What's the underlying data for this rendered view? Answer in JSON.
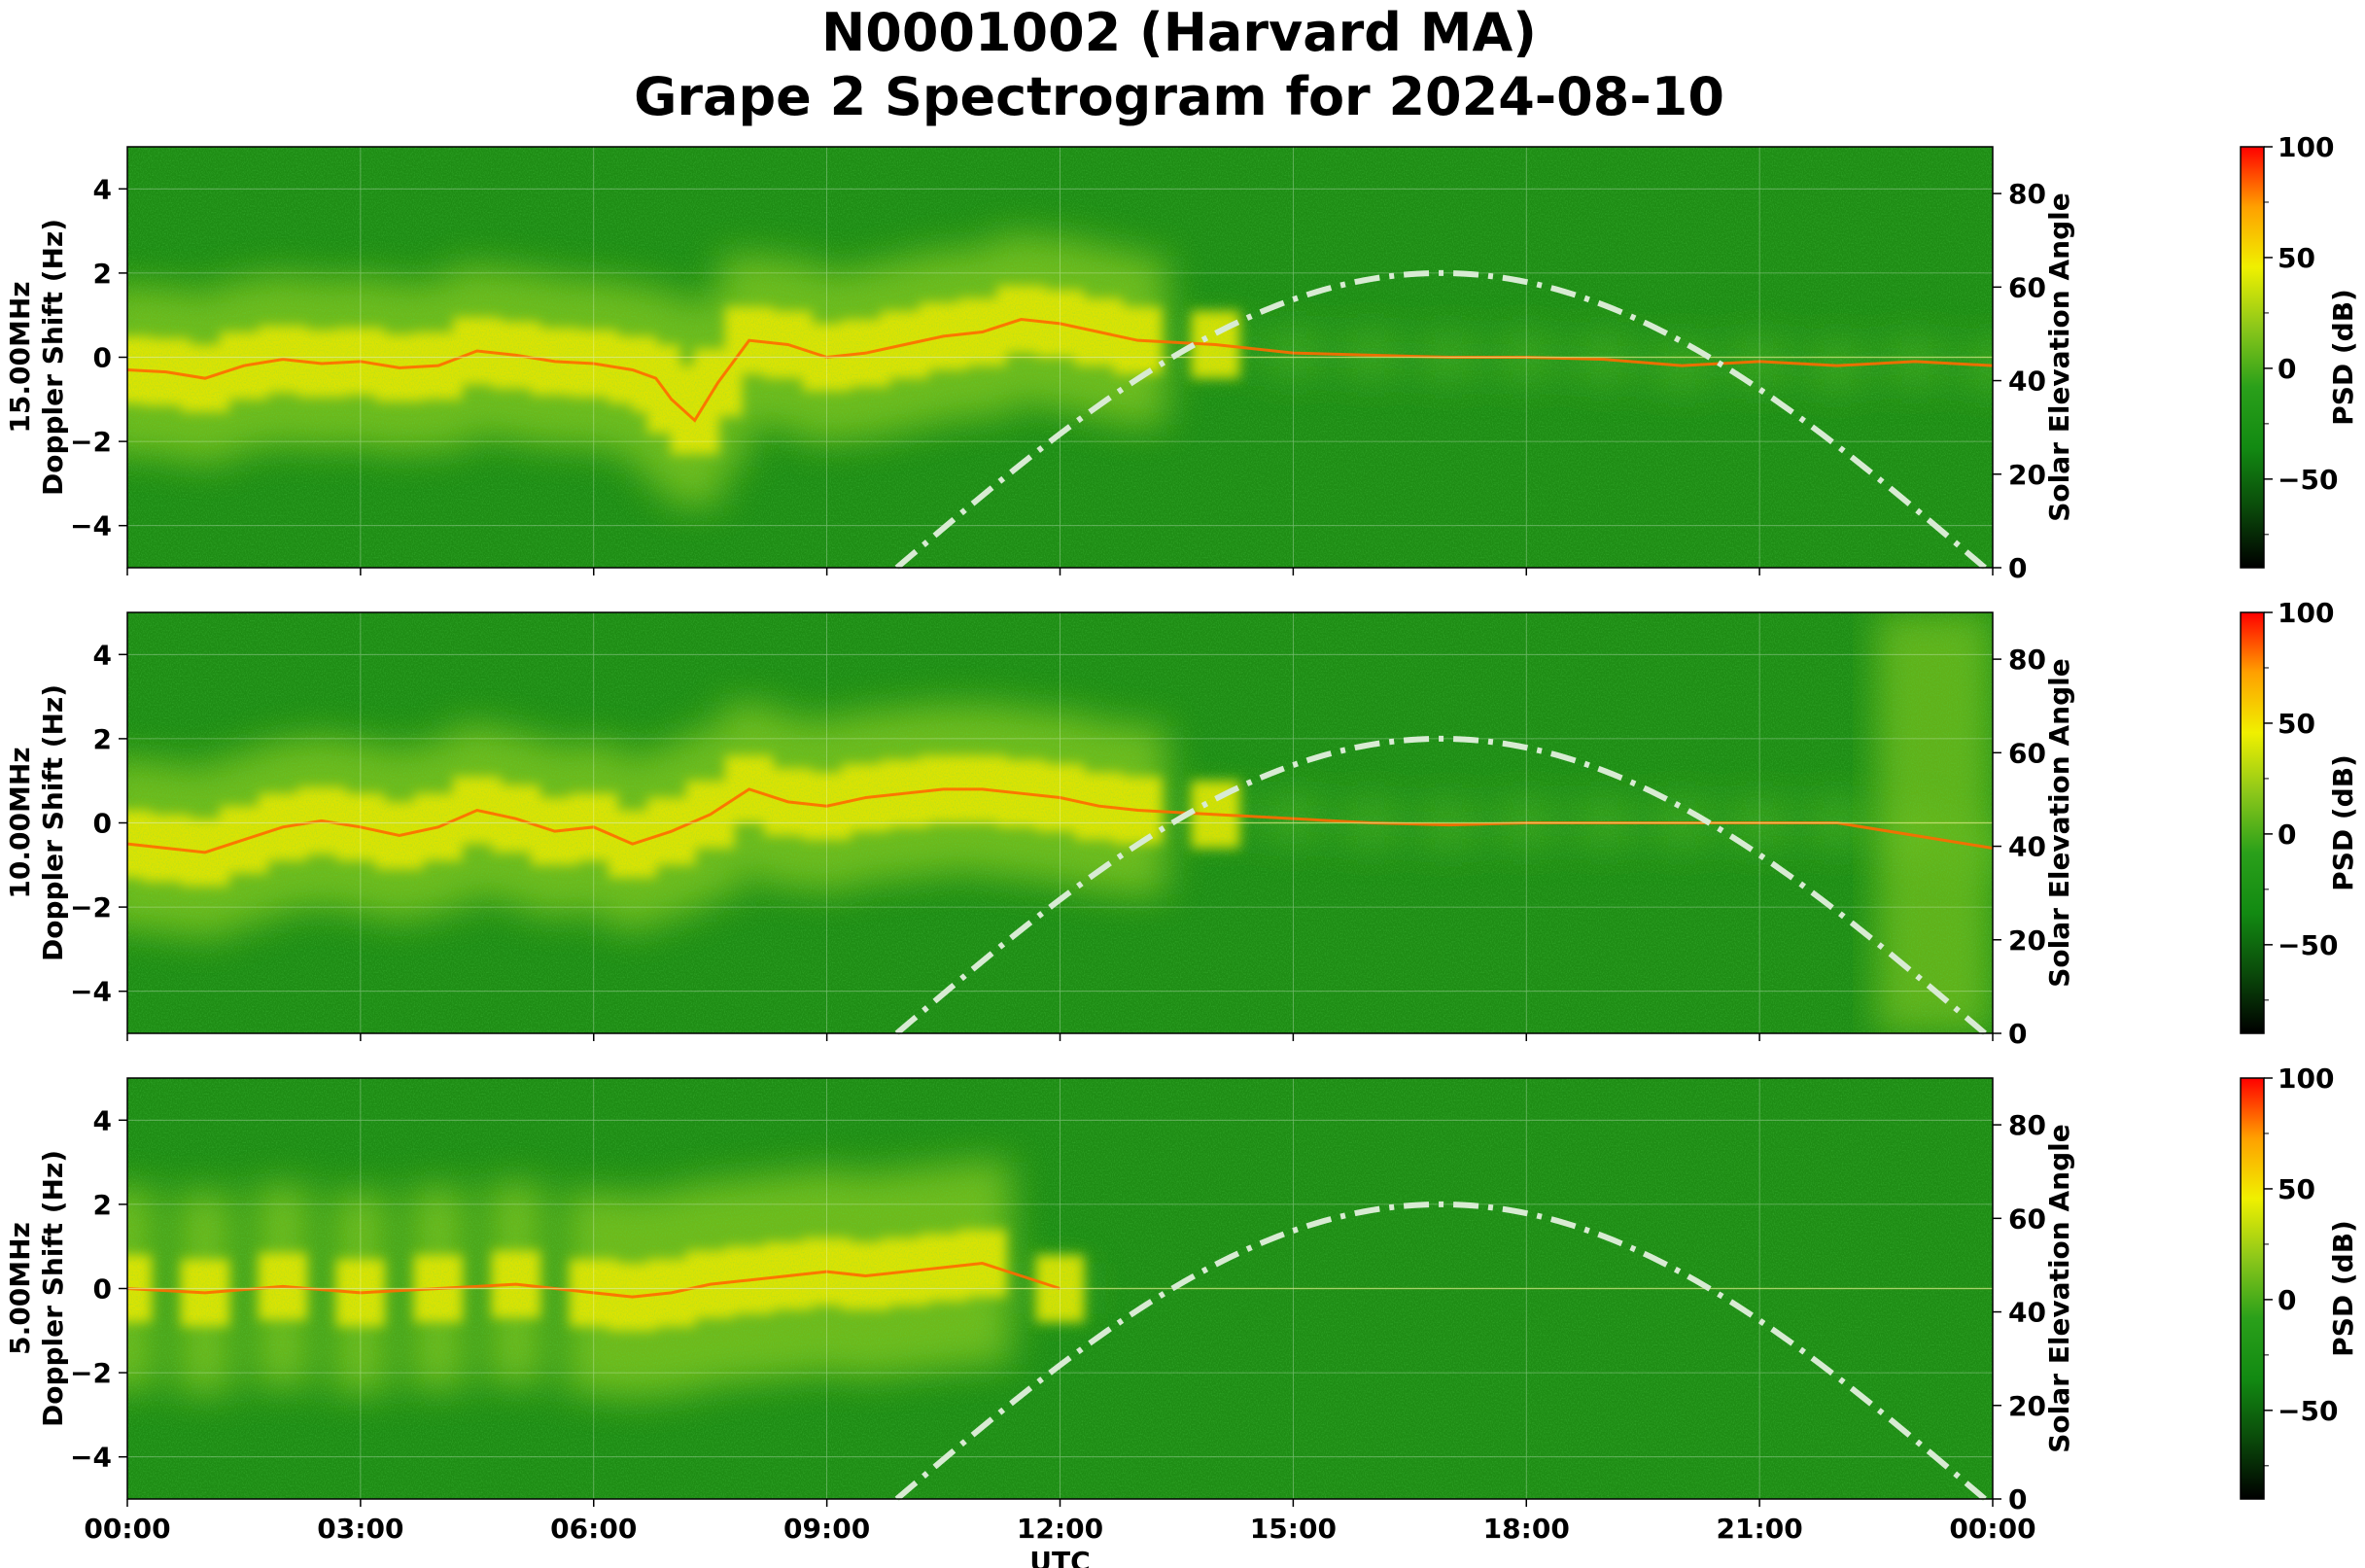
{
  "figure": {
    "title_line1": "N0001002 (Harvard MA)",
    "title_line2": "Grape 2 Spectrogram for 2024-08-10"
  },
  "chart_data": [
    {
      "type": "heatmap",
      "band_label": "15.00MHz",
      "ylabel": "Doppler Shift (Hz)",
      "y2label": "Solar Elevation Angle",
      "xlabel": "",
      "xlim_hours": [
        0,
        24
      ],
      "ylim": [
        -5,
        5
      ],
      "y2lim": [
        0,
        90
      ],
      "y_ticks": [
        -4,
        -2,
        0,
        2,
        4
      ],
      "y2_ticks": [
        0,
        20,
        40,
        60,
        80
      ],
      "show_x_tick_labels": false,
      "doppler_trace": [
        [
          0,
          -0.3
        ],
        [
          0.5,
          -0.35
        ],
        [
          1,
          -0.5
        ],
        [
          1.5,
          -0.2
        ],
        [
          2,
          -0.05
        ],
        [
          2.5,
          -0.15
        ],
        [
          3,
          -0.1
        ],
        [
          3.5,
          -0.25
        ],
        [
          4,
          -0.2
        ],
        [
          4.5,
          0.15
        ],
        [
          5,
          0.05
        ],
        [
          5.5,
          -0.1
        ],
        [
          6,
          -0.15
        ],
        [
          6.5,
          -0.3
        ],
        [
          6.8,
          -0.5
        ],
        [
          7,
          -1.0
        ],
        [
          7.3,
          -1.5
        ],
        [
          7.6,
          -0.6
        ],
        [
          8,
          0.4
        ],
        [
          8.5,
          0.3
        ],
        [
          9,
          0.0
        ],
        [
          9.5,
          0.1
        ],
        [
          10,
          0.3
        ],
        [
          10.5,
          0.5
        ],
        [
          11,
          0.6
        ],
        [
          11.5,
          0.9
        ],
        [
          12,
          0.8
        ],
        [
          12.5,
          0.6
        ],
        [
          13,
          0.4
        ],
        [
          14,
          0.3
        ],
        [
          15,
          0.1
        ],
        [
          16,
          0.05
        ],
        [
          17,
          0.0
        ],
        [
          18,
          0.0
        ],
        [
          19,
          -0.05
        ],
        [
          20,
          -0.2
        ],
        [
          21,
          -0.1
        ],
        [
          22,
          -0.2
        ],
        [
          23,
          -0.1
        ],
        [
          24,
          -0.2
        ]
      ]
    },
    {
      "type": "heatmap",
      "band_label": "10.00MHz",
      "ylabel": "Doppler Shift (Hz)",
      "y2label": "Solar Elevation Angle",
      "xlabel": "",
      "xlim_hours": [
        0,
        24
      ],
      "ylim": [
        -5,
        5
      ],
      "y2lim": [
        0,
        90
      ],
      "y_ticks": [
        -4,
        -2,
        0,
        2,
        4
      ],
      "y2_ticks": [
        0,
        20,
        40,
        60,
        80
      ],
      "show_x_tick_labels": false,
      "doppler_trace": [
        [
          0,
          -0.5
        ],
        [
          0.5,
          -0.6
        ],
        [
          1,
          -0.7
        ],
        [
          1.5,
          -0.4
        ],
        [
          2,
          -0.1
        ],
        [
          2.5,
          0.05
        ],
        [
          3,
          -0.1
        ],
        [
          3.5,
          -0.3
        ],
        [
          4,
          -0.1
        ],
        [
          4.5,
          0.3
        ],
        [
          5,
          0.1
        ],
        [
          5.5,
          -0.2
        ],
        [
          6,
          -0.1
        ],
        [
          6.5,
          -0.5
        ],
        [
          7,
          -0.2
        ],
        [
          7.5,
          0.2
        ],
        [
          8,
          0.8
        ],
        [
          8.5,
          0.5
        ],
        [
          9,
          0.4
        ],
        [
          9.5,
          0.6
        ],
        [
          10,
          0.7
        ],
        [
          10.5,
          0.8
        ],
        [
          11,
          0.8
        ],
        [
          11.5,
          0.7
        ],
        [
          12,
          0.6
        ],
        [
          12.5,
          0.4
        ],
        [
          13,
          0.3
        ],
        [
          14,
          0.2
        ],
        [
          15,
          0.1
        ],
        [
          16,
          0.0
        ],
        [
          17,
          -0.05
        ],
        [
          18,
          0.0
        ],
        [
          19,
          0.0
        ],
        [
          20,
          0.0
        ],
        [
          21,
          0.0
        ],
        [
          22,
          0.0
        ],
        [
          23,
          -0.3
        ],
        [
          24,
          -0.6
        ]
      ]
    },
    {
      "type": "heatmap",
      "band_label": "5.00MHz",
      "ylabel": "Doppler Shift (Hz)",
      "y2label": "Solar Elevation Angle",
      "xlabel": "UTC",
      "xlim_hours": [
        0,
        24
      ],
      "ylim": [
        -5,
        5
      ],
      "y2lim": [
        0,
        90
      ],
      "y_ticks": [
        -4,
        -2,
        0,
        2,
        4
      ],
      "y2_ticks": [
        0,
        20,
        40,
        60,
        80
      ],
      "show_x_tick_labels": true,
      "doppler_trace": [
        [
          0,
          0.0
        ],
        [
          1,
          -0.1
        ],
        [
          2,
          0.05
        ],
        [
          3,
          -0.1
        ],
        [
          4,
          0.0
        ],
        [
          5,
          0.1
        ],
        [
          6,
          -0.1
        ],
        [
          6.5,
          -0.2
        ],
        [
          7,
          -0.1
        ],
        [
          7.5,
          0.1
        ],
        [
          8,
          0.2
        ],
        [
          8.5,
          0.3
        ],
        [
          9,
          0.4
        ],
        [
          9.5,
          0.3
        ],
        [
          10,
          0.4
        ],
        [
          10.5,
          0.5
        ],
        [
          11,
          0.6
        ],
        [
          12,
          0.0
        ],
        [
          24,
          0.0
        ]
      ]
    }
  ],
  "x_tick_labels": [
    "00:00",
    "03:00",
    "06:00",
    "09:00",
    "12:00",
    "15:00",
    "18:00",
    "21:00",
    "00:00"
  ],
  "solar_elevation": {
    "sunrise_hour": 9.9,
    "noon_hour": 16.9,
    "sunset_hour": 23.9,
    "max_elevation": 63,
    "style": "dash-dot",
    "color": "#d8ebd3"
  },
  "colorbar": {
    "label": "PSD (dB)",
    "range": [
      -90,
      100
    ],
    "ticks": [
      100,
      50,
      0,
      -50
    ],
    "tick_labels": [
      "100",
      "50",
      "0",
      "−50"
    ],
    "colormap": [
      "#000000",
      "#0a4a0a",
      "#128a12",
      "#2aa01a",
      "#8cc71a",
      "#f0f000",
      "#ffa000",
      "#ff0000"
    ]
  },
  "colors": {
    "background_green": "#1e8c14",
    "bright_green": "#7cc21e",
    "yellow": "#e8e800",
    "trace_orange": "#ff6a00"
  }
}
